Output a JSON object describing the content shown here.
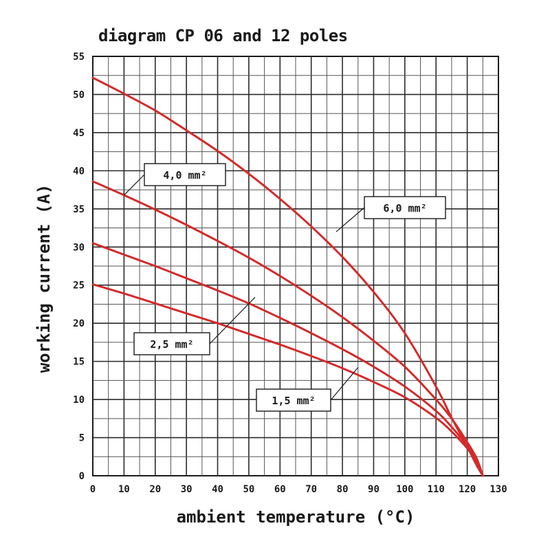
{
  "chart_data": {
    "type": "line",
    "title": "diagram CP 06 and 12 poles",
    "xlabel": "ambient temperature (°C)",
    "ylabel": "working current (A)",
    "xlim": [
      0,
      130
    ],
    "ylim": [
      0,
      55
    ],
    "x_ticks": [
      0,
      10,
      20,
      30,
      40,
      50,
      60,
      70,
      80,
      90,
      100,
      110,
      120,
      130
    ],
    "y_ticks": [
      0,
      5,
      10,
      15,
      20,
      25,
      30,
      35,
      40,
      45,
      50,
      55
    ],
    "grid": true,
    "line_color": "#d42a2a",
    "series": [
      {
        "name": "6,0 mm²",
        "x": [
          0,
          10,
          20,
          30,
          40,
          50,
          60,
          70,
          80,
          90,
          100,
          110,
          115,
          120,
          123,
          125
        ],
        "y": [
          52.2,
          50.1,
          47.9,
          45.3,
          42.6,
          39.6,
          36.3,
          32.7,
          28.7,
          24.1,
          18.7,
          11.7,
          7.6,
          3.8,
          1.4,
          0
        ]
      },
      {
        "name": "4,0 mm²",
        "x": [
          0,
          10,
          20,
          30,
          40,
          50,
          60,
          70,
          80,
          90,
          100,
          110,
          115,
          120,
          123,
          125
        ],
        "y": [
          38.6,
          36.8,
          34.9,
          32.9,
          30.8,
          28.6,
          26.2,
          23.6,
          20.8,
          17.7,
          14.3,
          10.0,
          7.5,
          4.4,
          2.3,
          0
        ]
      },
      {
        "name": "2,5 mm²",
        "x": [
          0,
          10,
          20,
          30,
          40,
          50,
          60,
          70,
          80,
          90,
          100,
          110,
          115,
          120,
          123,
          125
        ],
        "y": [
          30.5,
          29.0,
          27.5,
          25.9,
          24.3,
          22.6,
          20.7,
          18.7,
          16.6,
          14.3,
          11.7,
          8.5,
          6.4,
          3.9,
          2.0,
          0
        ]
      },
      {
        "name": "1,5 mm²",
        "x": [
          0,
          10,
          20,
          30,
          40,
          50,
          60,
          70,
          80,
          90,
          100,
          110,
          115,
          120,
          123,
          125
        ],
        "y": [
          25.1,
          23.9,
          22.6,
          21.3,
          20.0,
          18.6,
          17.2,
          15.7,
          14.1,
          12.3,
          10.3,
          7.6,
          5.8,
          3.6,
          1.9,
          0
        ]
      }
    ],
    "annotations": [
      {
        "series": "4,0 mm²",
        "text": "4,0 mm²",
        "x": 10,
        "y": 36.8
      },
      {
        "series": "6,0 mm²",
        "text": "6,0 mm²",
        "x": 78,
        "y": 32
      },
      {
        "series": "2,5 mm²",
        "text": "2,5 mm²",
        "x": 52,
        "y": 23.4
      },
      {
        "series": "1,5 mm²",
        "text": "1,5 mm²",
        "x": 85,
        "y": 14.2
      }
    ]
  }
}
